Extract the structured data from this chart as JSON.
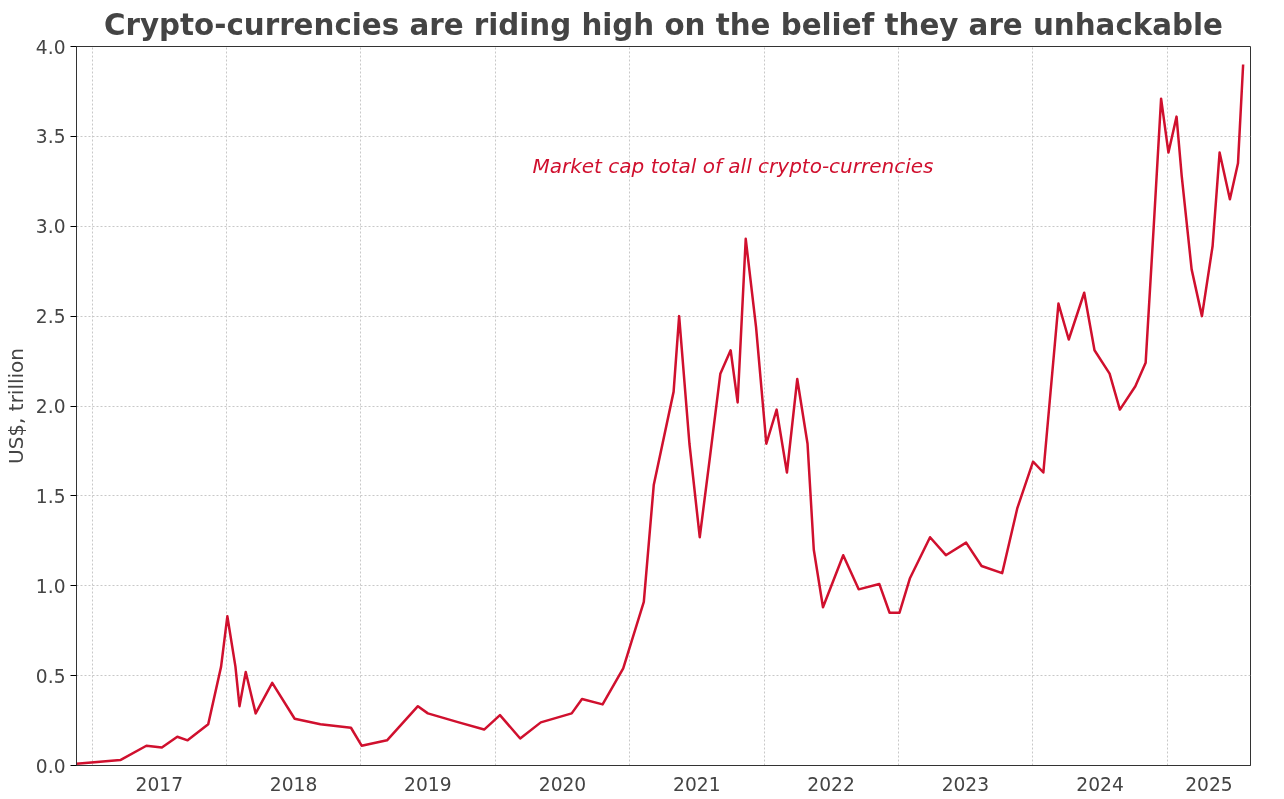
{
  "chart_data": {
    "type": "line",
    "title": "Crypto-currencies are riding high on the belief they are unhackable",
    "ylabel": "US$, trillion",
    "x": [
      "2016-11-19",
      "2017-03-18",
      "2017-05-28",
      "2017-07-09",
      "2017-08-20",
      "2017-09-17",
      "2017-11-12",
      "2017-12-17",
      "2018-01-03",
      "2018-01-25",
      "2018-02-05",
      "2018-02-22",
      "2018-03-21",
      "2018-05-05",
      "2018-07-05",
      "2018-09-13",
      "2018-12-05",
      "2019-01-03",
      "2019-03-13",
      "2019-06-05",
      "2019-07-02",
      "2019-09-24",
      "2019-12-02",
      "2020-01-14",
      "2020-03-09",
      "2020-05-04",
      "2020-07-27",
      "2020-08-24",
      "2020-10-19",
      "2020-12-14",
      "2021-02-08",
      "2021-03-07",
      "2021-04-30",
      "2021-05-15",
      "2021-06-12",
      "2021-07-10",
      "2021-08-07",
      "2021-09-04",
      "2021-10-02",
      "2021-10-21",
      "2021-11-12",
      "2021-12-10",
      "2022-01-07",
      "2022-02-04",
      "2022-03-04",
      "2022-04-01",
      "2022-04-29",
      "2022-05-16",
      "2022-06-10",
      "2022-08-04",
      "2022-09-15",
      "2022-11-10",
      "2022-12-08",
      "2023-01-04",
      "2023-02-01",
      "2023-03-28",
      "2023-05-10",
      "2023-07-04",
      "2023-08-15",
      "2023-10-10",
      "2023-11-20",
      "2024-01-02",
      "2024-01-30",
      "2024-03-11",
      "2024-04-08",
      "2024-05-20",
      "2024-06-17",
      "2024-07-28",
      "2024-08-25",
      "2024-10-06",
      "2024-11-03",
      "2024-11-25",
      "2024-12-15",
      "2025-01-04",
      "2025-01-26",
      "2025-02-09",
      "2025-03-08",
      "2025-04-05",
      "2025-05-04",
      "2025-05-23",
      "2025-06-20",
      "2025-07-12",
      "2025-07-26"
    ],
    "series": [
      {
        "name": "Market cap total of all crypto-currencies",
        "color": "#d0102e",
        "values": [
          0.01,
          0.03,
          0.11,
          0.1,
          0.16,
          0.14,
          0.23,
          0.55,
          0.83,
          0.55,
          0.33,
          0.52,
          0.29,
          0.46,
          0.26,
          0.23,
          0.21,
          0.11,
          0.14,
          0.33,
          0.29,
          0.24,
          0.2,
          0.28,
          0.15,
          0.24,
          0.29,
          0.37,
          0.34,
          0.54,
          0.91,
          1.56,
          2.08,
          2.5,
          1.79,
          1.27,
          1.72,
          2.18,
          2.31,
          2.02,
          2.93,
          2.44,
          1.79,
          1.98,
          1.63,
          2.15,
          1.79,
          1.2,
          0.88,
          1.17,
          0.98,
          1.01,
          0.85,
          0.85,
          1.04,
          1.27,
          1.17,
          1.24,
          1.11,
          1.07,
          1.43,
          1.69,
          1.63,
          2.57,
          2.37,
          2.63,
          2.31,
          2.18,
          1.98,
          2.11,
          2.24,
          3.0,
          3.71,
          3.41,
          3.61,
          3.28,
          2.76,
          2.5,
          2.89,
          3.41,
          3.15,
          3.35,
          3.9
        ]
      }
    ],
    "xlim": [
      "2016-11-19",
      "2025-08-15"
    ],
    "xticks": [
      {
        "value": "2017-01-01",
        "label": null
      },
      {
        "value": "2017-07-02",
        "label": "2017"
      },
      {
        "value": "2018-01-01",
        "label": null
      },
      {
        "value": "2018-07-02",
        "label": "2018"
      },
      {
        "value": "2019-01-01",
        "label": null
      },
      {
        "value": "2019-07-02",
        "label": "2019"
      },
      {
        "value": "2020-01-01",
        "label": null
      },
      {
        "value": "2020-07-02",
        "label": "2020"
      },
      {
        "value": "2021-01-01",
        "label": null
      },
      {
        "value": "2021-07-02",
        "label": "2021"
      },
      {
        "value": "2022-01-01",
        "label": null
      },
      {
        "value": "2022-07-02",
        "label": "2022"
      },
      {
        "value": "2023-01-01",
        "label": null
      },
      {
        "value": "2023-07-02",
        "label": "2023"
      },
      {
        "value": "2024-01-01",
        "label": null
      },
      {
        "value": "2024-07-02",
        "label": "2024"
      },
      {
        "value": "2025-01-01",
        "label": null
      },
      {
        "value": "2025-04-24",
        "label": "2025"
      }
    ],
    "ylim": [
      0,
      4.0
    ],
    "yticks": [
      {
        "value": 0,
        "label": "0.0"
      },
      {
        "value": 0.5,
        "label": "0.5"
      },
      {
        "value": 1,
        "label": "1.0"
      },
      {
        "value": 1.5,
        "label": "1.5"
      },
      {
        "value": 2,
        "label": "2.0"
      },
      {
        "value": 2.5,
        "label": "2.5"
      },
      {
        "value": 3,
        "label": "3.0"
      },
      {
        "value": 3.5,
        "label": "3.5"
      },
      {
        "value": 4,
        "label": "4.0"
      }
    ],
    "grid": true,
    "legend": false,
    "marker": "none",
    "line_style": "solid"
  }
}
